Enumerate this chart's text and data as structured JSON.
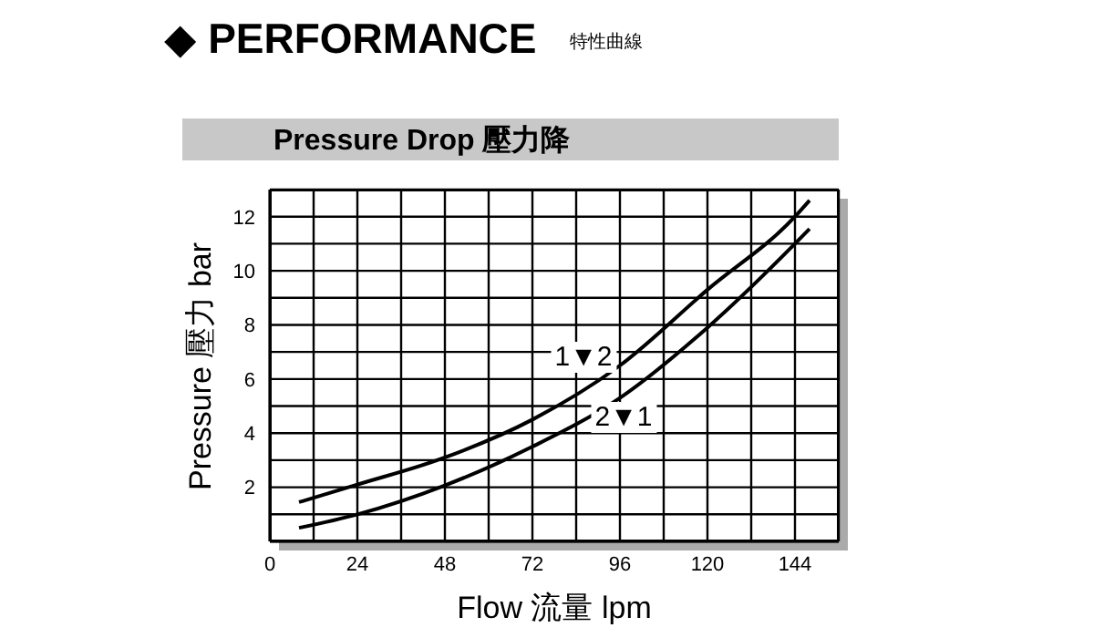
{
  "chart_data": {
    "type": "line",
    "title": "◆ PERFORMANCE",
    "subtitle": "Pressure Drop 壓力降",
    "xlabel": "Flow 流量 lpm",
    "ylabel": "Pressure 壓力 bar",
    "annotations": [
      "特性曲線",
      {
        "text": "1▼2",
        "x": 86,
        "y": 6.8
      },
      {
        "text": "2▼1",
        "x": 97,
        "y": 4.6
      }
    ],
    "x": [
      8,
      24,
      48,
      72,
      96,
      120,
      144,
      148
    ],
    "series": [
      {
        "color": "#000000",
        "values": [
          1.45,
          2.1,
          3.1,
          4.5,
          6.5,
          9.3,
          12.0,
          12.6
        ]
      },
      {
        "color": "#000000",
        "values": [
          0.5,
          1.0,
          2.07,
          3.5,
          5.3,
          7.9,
          11.0,
          11.55
        ]
      }
    ],
    "xlim": [
      0,
      156
    ],
    "ylim": [
      0,
      13
    ],
    "xticks": [
      0,
      {
        "value": 12,
        "label": null
      },
      24,
      {
        "value": 36,
        "label": null
      },
      48,
      {
        "value": 60,
        "label": null
      },
      72,
      {
        "value": 84,
        "label": null
      },
      96,
      {
        "value": 108,
        "label": null
      },
      120,
      {
        "value": 132,
        "label": null
      },
      144
    ],
    "yticks": [
      {
        "value": 1,
        "label": null
      },
      2,
      {
        "value": 3,
        "label": null
      },
      4,
      {
        "value": 5,
        "label": null
      },
      6,
      {
        "value": 7,
        "label": null
      },
      8,
      {
        "value": 9,
        "label": null
      },
      10,
      {
        "value": 11,
        "label": null
      },
      12
    ],
    "grid": true,
    "marker": "none",
    "line_style": "solid"
  }
}
